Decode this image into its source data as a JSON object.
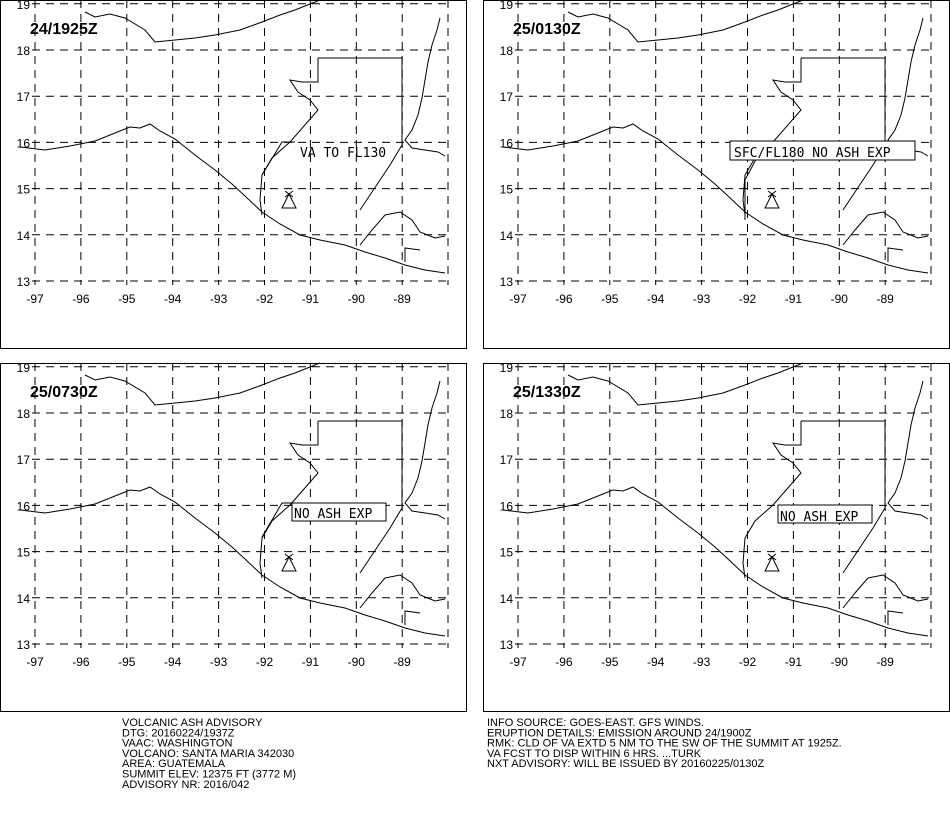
{
  "panels": [
    {
      "time": "24/1925Z",
      "label": "VA TO FL130"
    },
    {
      "time": "25/0130Z",
      "label": "SFC/FL180 NO ASH EXP"
    },
    {
      "time": "25/0730Z",
      "label": "NO ASH EXP"
    },
    {
      "time": "25/1330Z",
      "label": "NO ASH EXP"
    }
  ],
  "lon_ticks": [
    -97,
    -96,
    -95,
    -94,
    -93,
    -92,
    -91,
    -90,
    -89
  ],
  "lat_ticks": [
    13,
    14,
    15,
    16,
    17,
    18,
    19
  ],
  "footer_left": [
    "VOLCANIC ASH ADVISORY",
    "DTG: 20160224/1937Z",
    "VAAC: WASHINGTON",
    "VOLCANO: SANTA MARIA 342030",
    "AREA: GUATEMALA",
    "SUMMIT ELEV: 12375 FT (3772 M)",
    "ADVISORY NR: 2016/042"
  ],
  "footer_right": [
    "INFO SOURCE: GOES-EAST. GFS WINDS.",
    "ERUPTION DETAILS: EMISSION AROUND 24/1900Z",
    "RMK: CLD OF VA EXTD 5 NM TO THE SW OF THE SUMMIT AT 1925Z.",
    "VA FCST TO DISP WITHIN 6 HRS. ...TURK",
    "NXT ADVISORY: WILL BE ISSUED BY 20160225/0130Z"
  ]
}
